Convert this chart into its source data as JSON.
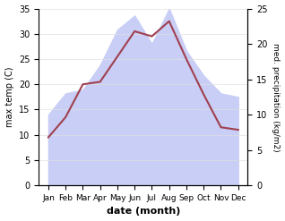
{
  "months": [
    "Jan",
    "Feb",
    "Mar",
    "Apr",
    "May",
    "Jun",
    "Jul",
    "Aug",
    "Sep",
    "Oct",
    "Nov",
    "Dec"
  ],
  "temp": [
    9.5,
    13.5,
    20.0,
    20.5,
    25.5,
    30.5,
    29.5,
    32.5,
    25.0,
    18.0,
    11.5,
    11.0
  ],
  "precip": [
    10.0,
    13.0,
    13.5,
    17.0,
    22.0,
    24.0,
    20.0,
    25.0,
    19.0,
    15.5,
    13.0,
    12.5
  ],
  "temp_color": "#a04050",
  "precip_fill_color": "#c8cef5",
  "temp_ylim": [
    0,
    35
  ],
  "precip_ylim": [
    0,
    25
  ],
  "temp_yticks": [
    0,
    5,
    10,
    15,
    20,
    25,
    30,
    35
  ],
  "precip_yticks": [
    0,
    5,
    10,
    15,
    20,
    25
  ],
  "xlabel": "date (month)",
  "ylabel_left": "max temp (C)",
  "ylabel_right": "med. precipitation (kg/m2)",
  "bg_color": "#ffffff"
}
